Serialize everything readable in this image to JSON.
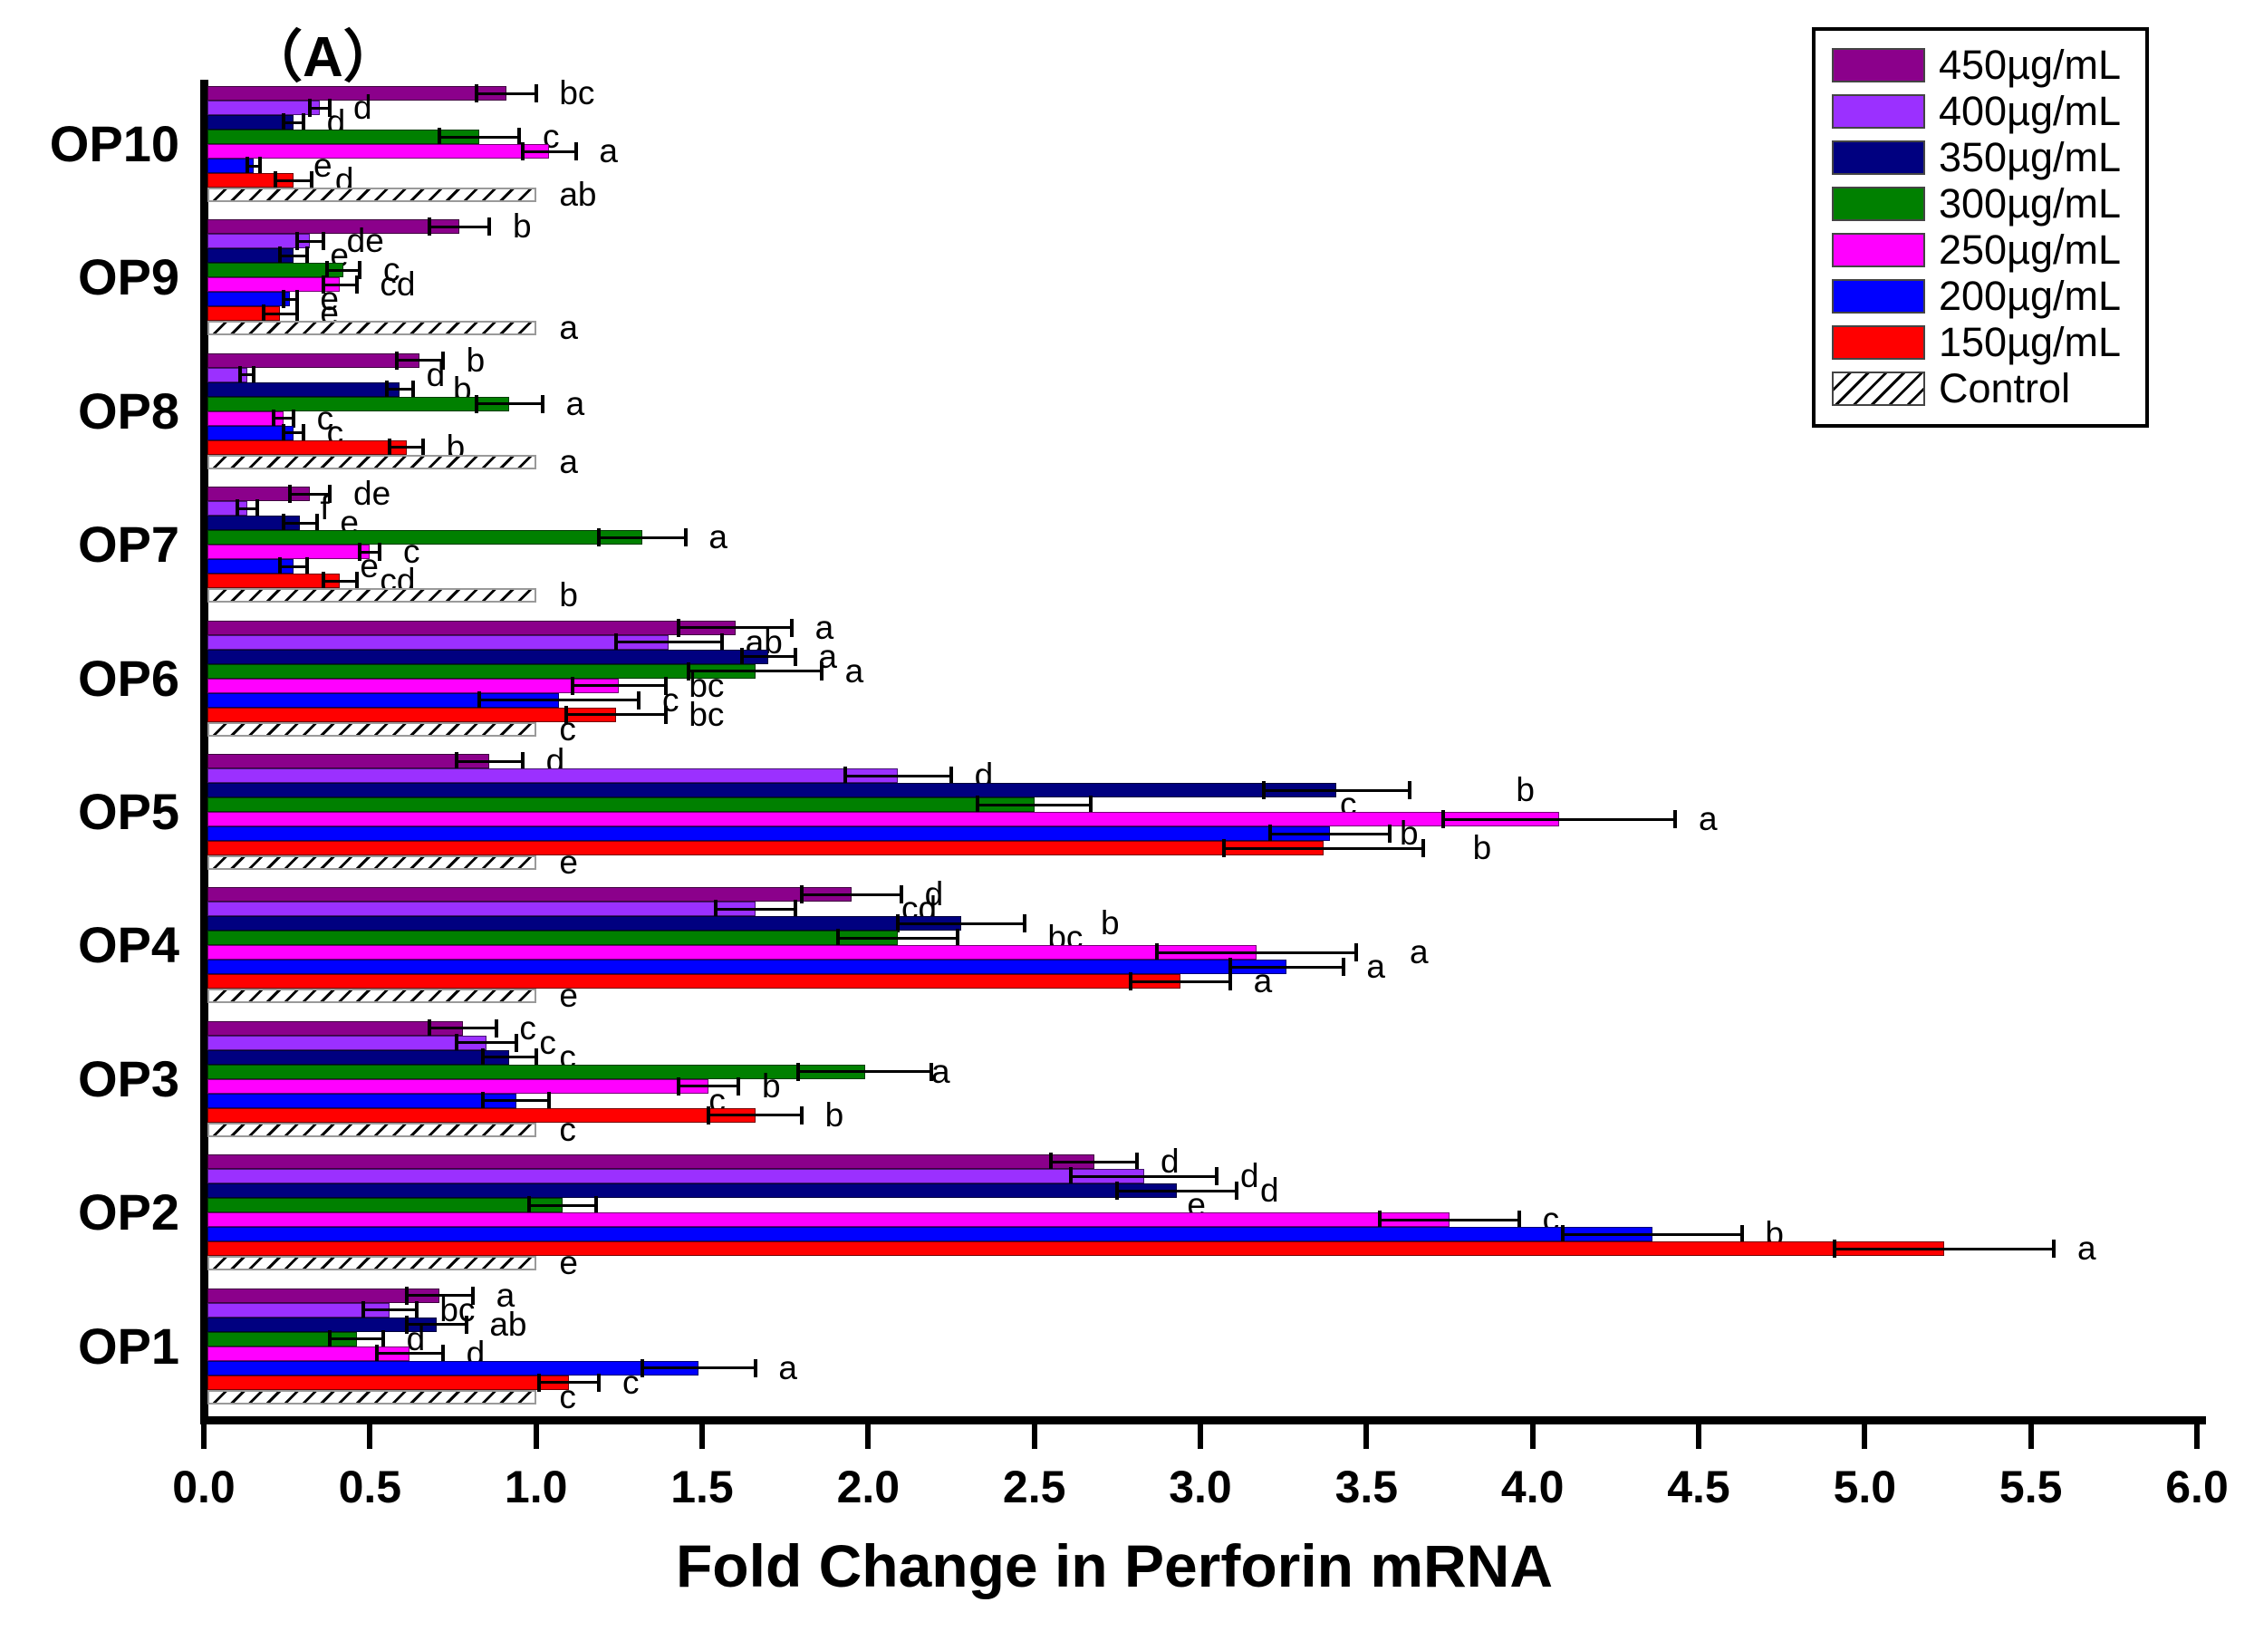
{
  "chart_data": {
    "type": "bar",
    "variant": "horizontal-grouped",
    "title": "（A）",
    "xlabel": "Fold Change in Perforin mRNA",
    "xlim": [
      0.0,
      6.0
    ],
    "xticks": [
      "0.0",
      "0.5",
      "1.0",
      "1.5",
      "2.0",
      "2.5",
      "3.0",
      "3.5",
      "4.0",
      "4.5",
      "5.0",
      "5.5",
      "6.0"
    ],
    "grid": "off",
    "legend_position": "top-right",
    "series_order": [
      "450µg/mL",
      "400µg/mL",
      "350µg/mL",
      "300µg/mL",
      "250µg/mL",
      "200µg/mL",
      "150µg/mL",
      "Control"
    ],
    "series_colors": {
      "450µg/mL": "#8B008B",
      "400µg/mL": "#9B30FF",
      "350µg/mL": "#000080",
      "300µg/mL": "#008000",
      "250µg/mL": "#FF00FF",
      "200µg/mL": "#0000FF",
      "150µg/mL": "#FF0000",
      "Control": "hatch"
    },
    "value_note": "bars = mean fold change; err = half-width of error bar; letter = significance letter; lx = observed x-position of letter in data units when it deviates from err end",
    "groups": [
      {
        "name": "OP10",
        "bars": [
          {
            "series": "450µg/mL",
            "value": 0.91,
            "err": 0.09,
            "letter": "bc"
          },
          {
            "series": "400µg/mL",
            "value": 0.35,
            "err": 0.03,
            "letter": "d"
          },
          {
            "series": "350µg/mL",
            "value": 0.27,
            "err": 0.03,
            "letter": "d"
          },
          {
            "series": "300µg/mL",
            "value": 0.83,
            "err": 0.12,
            "letter": "c"
          },
          {
            "series": "250µg/mL",
            "value": 1.04,
            "err": 0.08,
            "letter": "a"
          },
          {
            "series": "200µg/mL",
            "value": 0.15,
            "err": 0.02,
            "letter": "e",
            "lx": 0.33
          },
          {
            "series": "150µg/mL",
            "value": 0.27,
            "err": 0.055,
            "letter": "d"
          },
          {
            "series": "Control",
            "value": 1.0,
            "err": 0,
            "letter": "ab"
          }
        ]
      },
      {
        "name": "OP9",
        "bars": [
          {
            "series": "450µg/mL",
            "value": 0.77,
            "err": 0.09,
            "letter": "b"
          },
          {
            "series": "400µg/mL",
            "value": 0.32,
            "err": 0.04,
            "letter": "de"
          },
          {
            "series": "350µg/mL",
            "value": 0.27,
            "err": 0.04,
            "letter": "e"
          },
          {
            "series": "300µg/mL",
            "value": 0.42,
            "err": 0.05,
            "letter": "c"
          },
          {
            "series": "250µg/mL",
            "value": 0.41,
            "err": 0.05,
            "letter": "cd"
          },
          {
            "series": "200µg/mL",
            "value": 0.26,
            "err": 0.02,
            "letter": "e"
          },
          {
            "series": "150µg/mL",
            "value": 0.23,
            "err": 0.05,
            "letter": "e"
          },
          {
            "series": "Control",
            "value": 1.0,
            "err": 0,
            "letter": "a"
          }
        ]
      },
      {
        "name": "OP8",
        "bars": [
          {
            "series": "450µg/mL",
            "value": 0.65,
            "err": 0.07,
            "letter": "b"
          },
          {
            "series": "400µg/mL",
            "value": 0.13,
            "err": 0.02,
            "letter": "d",
            "lx": 0.67
          },
          {
            "series": "350µg/mL",
            "value": 0.59,
            "err": 0.04,
            "letter": "b",
            "lx": 0.75
          },
          {
            "series": "300µg/mL",
            "value": 0.92,
            "err": 0.1,
            "letter": "a"
          },
          {
            "series": "250µg/mL",
            "value": 0.24,
            "err": 0.03,
            "letter": "c"
          },
          {
            "series": "200µg/mL",
            "value": 0.27,
            "err": 0.03,
            "letter": "c"
          },
          {
            "series": "150µg/mL",
            "value": 0.61,
            "err": 0.05,
            "letter": "b"
          },
          {
            "series": "Control",
            "value": 1.0,
            "err": 0,
            "letter": "a"
          }
        ]
      },
      {
        "name": "OP7",
        "bars": [
          {
            "series": "450µg/mL",
            "value": 0.32,
            "err": 0.06,
            "letter": "de"
          },
          {
            "series": "400µg/mL",
            "value": 0.13,
            "err": 0.03,
            "letter": "f",
            "lx": 0.35
          },
          {
            "series": "350µg/mL",
            "value": 0.29,
            "err": 0.05,
            "letter": "e"
          },
          {
            "series": "300µg/mL",
            "value": 1.32,
            "err": 0.13,
            "letter": "a"
          },
          {
            "series": "250µg/mL",
            "value": 0.5,
            "err": 0.03,
            "letter": "c"
          },
          {
            "series": "200µg/mL",
            "value": 0.27,
            "err": 0.04,
            "letter": "e",
            "lx": 0.47
          },
          {
            "series": "150µg/mL",
            "value": 0.41,
            "err": 0.05,
            "letter": "cd"
          },
          {
            "series": "Control",
            "value": 1.0,
            "err": 0,
            "letter": "b"
          }
        ]
      },
      {
        "name": "OP6",
        "bars": [
          {
            "series": "450µg/mL",
            "value": 1.6,
            "err": 0.17,
            "letter": "a"
          },
          {
            "series": "400µg/mL",
            "value": 1.4,
            "err": 0.16,
            "letter": "ab"
          },
          {
            "series": "350µg/mL",
            "value": 1.7,
            "err": 0.08,
            "letter": "a"
          },
          {
            "series": "300µg/mL",
            "value": 1.66,
            "err": 0.2,
            "letter": "a"
          },
          {
            "series": "250µg/mL",
            "value": 1.25,
            "err": 0.14,
            "letter": "bc"
          },
          {
            "series": "200µg/mL",
            "value": 1.07,
            "err": 0.24,
            "letter": "c"
          },
          {
            "series": "150µg/mL",
            "value": 1.24,
            "err": 0.15,
            "letter": "bc"
          },
          {
            "series": "Control",
            "value": 1.0,
            "err": 0,
            "letter": "c"
          }
        ]
      },
      {
        "name": "OP5",
        "bars": [
          {
            "series": "450µg/mL",
            "value": 0.86,
            "err": 0.1,
            "letter": "d"
          },
          {
            "series": "400µg/mL",
            "value": 2.09,
            "err": 0.16,
            "letter": "d"
          },
          {
            "series": "350µg/mL",
            "value": 3.41,
            "err": 0.22,
            "letter": "b",
            "lx": 3.95
          },
          {
            "series": "300µg/mL",
            "value": 2.5,
            "err": 0.17,
            "letter": "c",
            "lx": 3.42
          },
          {
            "series": "250µg/mL",
            "value": 4.08,
            "err": 0.35,
            "letter": "a"
          },
          {
            "series": "200µg/mL",
            "value": 3.39,
            "err": 0.18,
            "letter": "b",
            "lx": 3.6
          },
          {
            "series": "150µg/mL",
            "value": 3.37,
            "err": 0.3,
            "letter": "b",
            "lx": 3.82
          },
          {
            "series": "Control",
            "value": 1.0,
            "err": 0,
            "letter": "e"
          }
        ]
      },
      {
        "name": "OP4",
        "bars": [
          {
            "series": "450µg/mL",
            "value": 1.95,
            "err": 0.15,
            "letter": "d"
          },
          {
            "series": "400µg/mL",
            "value": 1.66,
            "err": 0.12,
            "letter": "cd",
            "lx": 2.1
          },
          {
            "series": "350µg/mL",
            "value": 2.28,
            "err": 0.19,
            "letter": "b",
            "lx": 2.7
          },
          {
            "series": "300µg/mL",
            "value": 2.09,
            "err": 0.18,
            "letter": "bc",
            "lx": 2.54
          },
          {
            "series": "250µg/mL",
            "value": 3.17,
            "err": 0.3,
            "letter": "a",
            "lx": 3.63
          },
          {
            "series": "200µg/mL",
            "value": 3.26,
            "err": 0.17,
            "letter": "a"
          },
          {
            "series": "150µg/mL",
            "value": 2.94,
            "err": 0.15,
            "letter": "a"
          },
          {
            "series": "Control",
            "value": 1.0,
            "err": 0,
            "letter": "e"
          }
        ]
      },
      {
        "name": "OP3",
        "bars": [
          {
            "series": "450µg/mL",
            "value": 0.78,
            "err": 0.1,
            "letter": "c"
          },
          {
            "series": "400µg/mL",
            "value": 0.85,
            "err": 0.09,
            "letter": "c"
          },
          {
            "series": "350µg/mL",
            "value": 0.92,
            "err": 0.08,
            "letter": "c"
          },
          {
            "series": "300µg/mL",
            "value": 1.99,
            "err": 0.2,
            "letter": "a",
            "lx": 2.19
          },
          {
            "series": "250µg/mL",
            "value": 1.52,
            "err": 0.09,
            "letter": "b"
          },
          {
            "series": "200µg/mL",
            "value": 0.94,
            "err": 0.1,
            "letter": "c",
            "lx": 1.52
          },
          {
            "series": "150µg/mL",
            "value": 1.66,
            "err": 0.14,
            "letter": "b"
          },
          {
            "series": "Control",
            "value": 1.0,
            "err": 0,
            "letter": "c"
          }
        ]
      },
      {
        "name": "OP2",
        "bars": [
          {
            "series": "450µg/mL",
            "value": 2.68,
            "err": 0.13,
            "letter": "d"
          },
          {
            "series": "400µg/mL",
            "value": 2.83,
            "err": 0.22,
            "letter": "d"
          },
          {
            "series": "350µg/mL",
            "value": 2.93,
            "err": 0.18,
            "letter": "d"
          },
          {
            "series": "300µg/mL",
            "value": 1.08,
            "err": 0.1,
            "letter": "e",
            "lx": 2.96
          },
          {
            "series": "250µg/mL",
            "value": 3.75,
            "err": 0.21,
            "letter": "c"
          },
          {
            "series": "200µg/mL",
            "value": 4.36,
            "err": 0.27,
            "letter": "b"
          },
          {
            "series": "150µg/mL",
            "value": 5.24,
            "err": 0.33,
            "letter": "a"
          },
          {
            "series": "Control",
            "value": 1.0,
            "err": 0,
            "letter": "e"
          }
        ]
      },
      {
        "name": "OP1",
        "bars": [
          {
            "series": "450µg/mL",
            "value": 0.71,
            "err": 0.1,
            "letter": "a"
          },
          {
            "series": "400µg/mL",
            "value": 0.56,
            "err": 0.08,
            "letter": "bc"
          },
          {
            "series": "350µg/mL",
            "value": 0.7,
            "err": 0.09,
            "letter": "ab"
          },
          {
            "series": "300µg/mL",
            "value": 0.46,
            "err": 0.08,
            "letter": "d"
          },
          {
            "series": "250µg/mL",
            "value": 0.62,
            "err": 0.1,
            "letter": "d"
          },
          {
            "series": "200µg/mL",
            "value": 1.49,
            "err": 0.17,
            "letter": "a"
          },
          {
            "series": "150µg/mL",
            "value": 1.1,
            "err": 0.09,
            "letter": "c"
          },
          {
            "series": "Control",
            "value": 1.0,
            "err": 0,
            "letter": "c"
          }
        ]
      }
    ]
  }
}
